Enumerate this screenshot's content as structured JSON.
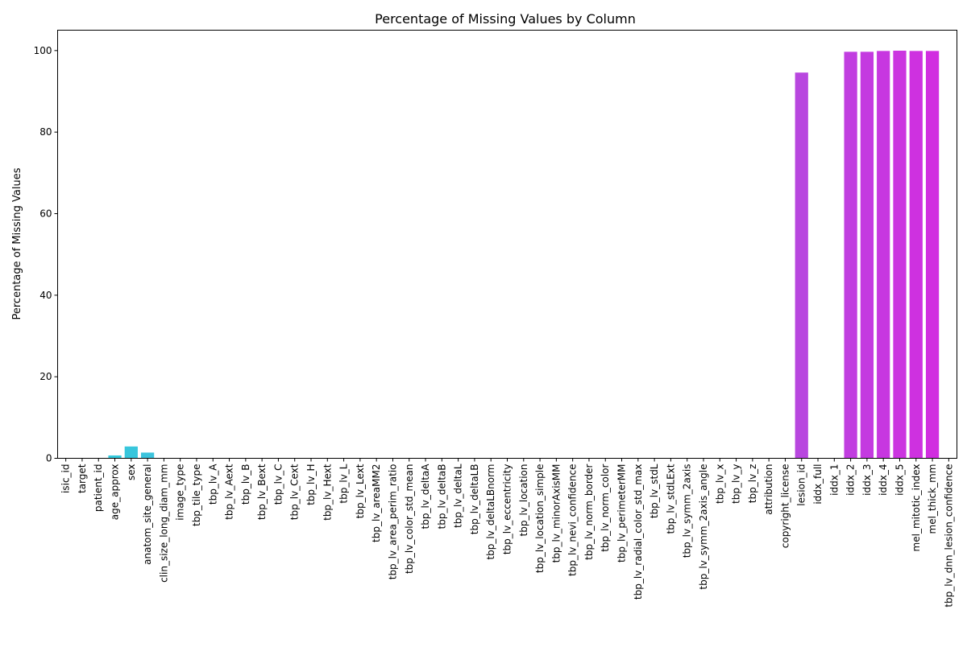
{
  "chart_data": {
    "type": "bar",
    "title": "Percentage of Missing Values by Column",
    "xlabel": "",
    "ylabel": "Percentage of Missing Values",
    "ylim": [
      0,
      105
    ],
    "yticks": [
      0,
      20,
      40,
      60,
      80,
      100
    ],
    "grid": false,
    "colors": {
      "low": "#2bd2dc",
      "high": "#d42be0"
    },
    "categories": [
      "isic_id",
      "target",
      "patient_id",
      "age_approx",
      "sex",
      "anatom_site_general",
      "clin_size_long_diam_mm",
      "image_type",
      "tbp_tile_type",
      "tbp_lv_A",
      "tbp_lv_Aext",
      "tbp_lv_B",
      "tbp_lv_Bext",
      "tbp_lv_C",
      "tbp_lv_Cext",
      "tbp_lv_H",
      "tbp_lv_Hext",
      "tbp_lv_L",
      "tbp_lv_Lext",
      "tbp_lv_areaMM2",
      "tbp_lv_area_perim_ratio",
      "tbp_lv_color_std_mean",
      "tbp_lv_deltaA",
      "tbp_lv_deltaB",
      "tbp_lv_deltaL",
      "tbp_lv_deltaLB",
      "tbp_lv_deltaLBnorm",
      "tbp_lv_eccentricity",
      "tbp_lv_location",
      "tbp_lv_location_simple",
      "tbp_lv_minorAxisMM",
      "tbp_lv_nevi_confidence",
      "tbp_lv_norm_border",
      "tbp_lv_norm_color",
      "tbp_lv_perimeterMM",
      "tbp_lv_radial_color_std_max",
      "tbp_lv_stdL",
      "tbp_lv_stdLExt",
      "tbp_lv_symm_2axis",
      "tbp_lv_symm_2axis_angle",
      "tbp_lv_x",
      "tbp_lv_y",
      "tbp_lv_z",
      "attribution",
      "copyright_license",
      "lesion_id",
      "iddx_full",
      "iddx_1",
      "iddx_2",
      "iddx_3",
      "iddx_4",
      "iddx_5",
      "mel_mitotic_index",
      "mel_thick_mm",
      "tbp_lv_dnn_lesion_confidence"
    ],
    "values": [
      0,
      0,
      0,
      0.7,
      2.9,
      1.4,
      0,
      0,
      0,
      0,
      0,
      0,
      0,
      0,
      0,
      0,
      0,
      0,
      0,
      0,
      0,
      0,
      0,
      0,
      0,
      0,
      0,
      0,
      0,
      0,
      0,
      0,
      0,
      0,
      0,
      0,
      0,
      0,
      0,
      0,
      0,
      0,
      0,
      0,
      0,
      94.6,
      0,
      0,
      99.7,
      99.7,
      99.9,
      99.97,
      99.9,
      99.9,
      0
    ]
  }
}
